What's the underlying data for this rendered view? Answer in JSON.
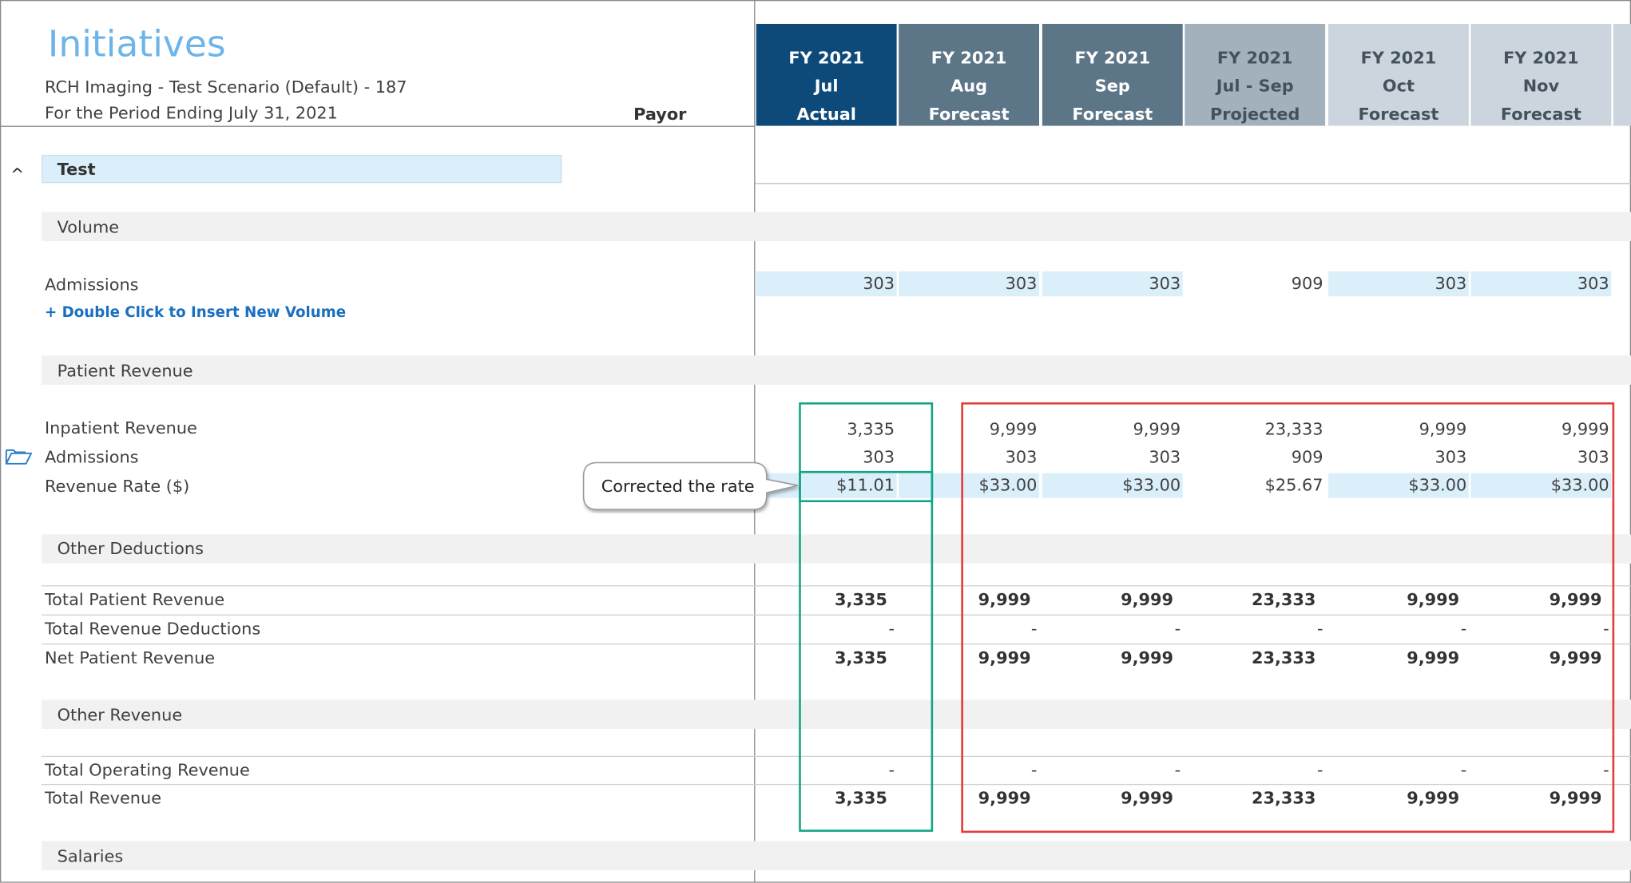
{
  "header": {
    "title": "Initiatives",
    "subtitle": "RCH Imaging - Test Scenario (Default) - 187",
    "period": "For the Period Ending July 31, 2021",
    "payor_label": "Payor"
  },
  "columns": [
    {
      "fy": "FY 2021",
      "month": "Jul",
      "type": "Actual",
      "bg": "#0d4a7a",
      "fg": "#ffffff"
    },
    {
      "fy": "FY 2021",
      "month": "Aug",
      "type": "Forecast",
      "bg": "#5c7688",
      "fg": "#ffffff"
    },
    {
      "fy": "FY 2021",
      "month": "Sep",
      "type": "Forecast",
      "bg": "#5c7688",
      "fg": "#ffffff"
    },
    {
      "fy": "FY 2021",
      "month": "Jul - Sep",
      "type": "Projected",
      "bg": "#a2b1bc",
      "fg": "#44525c"
    },
    {
      "fy": "FY 2021",
      "month": "Oct",
      "type": "Forecast",
      "bg": "#ccd5dd",
      "fg": "#44525c"
    },
    {
      "fy": "FY 2021",
      "month": "Nov",
      "type": "Forecast",
      "bg": "#ccd5dd",
      "fg": "#44525c"
    }
  ],
  "group": {
    "caret": "^",
    "label": "Test"
  },
  "sections": {
    "volume": "Volume",
    "patient_revenue": "Patient Revenue",
    "other_deductions": "Other Deductions",
    "other_revenue": "Other Revenue",
    "salaries": "Salaries"
  },
  "insert_link": "+ Double Click to Insert New Volume",
  "rows": {
    "admissions_volume": {
      "label": "Admissions",
      "values": [
        "303",
        "303",
        "303",
        "909",
        "303",
        "303"
      ]
    },
    "inpatient_revenue": {
      "label": "Inpatient Revenue",
      "values": [
        "3,335",
        "9,999",
        "9,999",
        "23,333",
        "9,999",
        "9,999"
      ]
    },
    "admissions": {
      "label": "Admissions",
      "values": [
        "303",
        "303",
        "303",
        "909",
        "303",
        "303"
      ]
    },
    "revenue_rate": {
      "label": "Revenue Rate ($)",
      "values": [
        "$11.01",
        "$33.00",
        "$33.00",
        "$25.67",
        "$33.00",
        "$33.00"
      ]
    },
    "total_patient_revenue": {
      "label": "Total Patient Revenue",
      "values": [
        "3,335",
        "9,999",
        "9,999",
        "23,333",
        "9,999",
        "9,999"
      ]
    },
    "total_revenue_deductions": {
      "label": "Total Revenue Deductions",
      "values": [
        "-",
        "-",
        "-",
        "-",
        "-",
        "-"
      ]
    },
    "net_patient_revenue": {
      "label": "Net Patient Revenue",
      "values": [
        "3,335",
        "9,999",
        "9,999",
        "23,333",
        "9,999",
        "9,999"
      ]
    },
    "total_operating_revenue": {
      "label": "Total Operating Revenue",
      "values": [
        "-",
        "-",
        "-",
        "-",
        "-",
        "-"
      ]
    },
    "total_revenue": {
      "label": "Total Revenue",
      "values": [
        "3,335",
        "9,999",
        "9,999",
        "23,333",
        "9,999",
        "9,999"
      ]
    }
  },
  "callout": "Corrected the rate",
  "colors": {
    "accent_title": "#6cb4ea",
    "highlight_green": "#12a586",
    "highlight_red": "#e53b3b",
    "cell_blue": "#dbeffb",
    "link_blue": "#1a6fc0"
  }
}
